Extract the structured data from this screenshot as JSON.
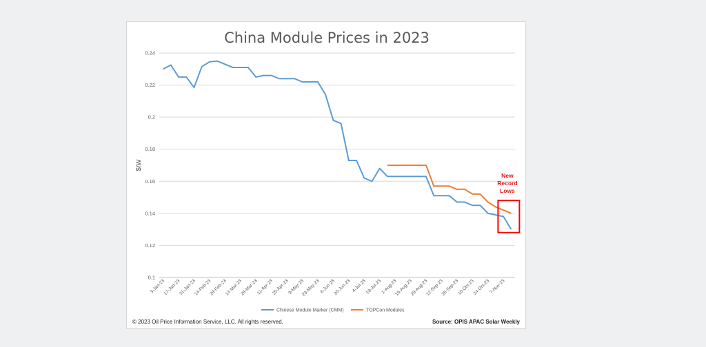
{
  "chart_data": {
    "type": "line",
    "title": "China Module Prices in 2023",
    "ylabel": "$/W",
    "xlabel": "",
    "ylim": [
      0.1,
      0.24
    ],
    "yticks": [
      0.1,
      0.12,
      0.14,
      0.16,
      0.18,
      0.2,
      0.22,
      0.24
    ],
    "grid": true,
    "legend_position": "bottom",
    "x": [
      "3-Jan-23",
      "10-Jan-23",
      "17-Jan-23",
      "24-Jan-23",
      "31-Jan-23",
      "7-Feb-23",
      "14-Feb-23",
      "21-Feb-23",
      "28-Feb-23",
      "7-Mar-23",
      "14-Mar-23",
      "21-Mar-23",
      "28-Mar-23",
      "4-Apr-23",
      "11-Apr-23",
      "18-Apr-23",
      "25-Apr-23",
      "2-May-23",
      "9-May-23",
      "16-May-23",
      "23-May-23",
      "30-May-23",
      "6-Jun-23",
      "13-Jun-23",
      "20-Jun-23",
      "27-Jun-23",
      "4-Jul-23",
      "11-Jul-23",
      "18-Jul-23",
      "25-Jul-23",
      "1-Aug-23",
      "8-Aug-23",
      "15-Aug-23",
      "22-Aug-23",
      "29-Aug-23",
      "5-Sep-23",
      "12-Sep-23",
      "19-Sep-23",
      "26-Sep-23",
      "3-Oct-23",
      "10-Oct-23",
      "17-Oct-23",
      "24-Oct-23",
      "31-Oct-23",
      "7-Nov-23",
      "14-Nov-23"
    ],
    "x_tick_labels": [
      "3-Jan-23",
      "17-Jan-23",
      "31-Jan-23",
      "14-Feb-23",
      "28-Feb-23",
      "14-Mar-23",
      "28-Mar-23",
      "11-Apr-23",
      "25-Apr-23",
      "9-May-23",
      "23-May-23",
      "6-Jun-23",
      "20-Jun-23",
      "4-Jul-23",
      "18-Jul-23",
      "1-Aug-23",
      "15-Aug-23",
      "29-Aug-23",
      "12-Sep-23",
      "26-Sep-23",
      "10-Oct-23",
      "24-Oct-23",
      "7-Nov-23"
    ],
    "series": [
      {
        "name": "Chinese Module Marker (CMM)",
        "color": "#5b9bd5",
        "values": [
          0.23,
          0.2325,
          0.225,
          0.225,
          0.2185,
          0.2315,
          0.2345,
          0.235,
          0.233,
          0.231,
          0.231,
          0.231,
          0.225,
          0.226,
          0.226,
          0.224,
          0.224,
          0.224,
          0.222,
          0.222,
          0.222,
          0.214,
          0.198,
          0.196,
          0.173,
          0.173,
          0.162,
          0.16,
          0.168,
          0.163,
          0.163,
          0.163,
          0.163,
          0.163,
          0.163,
          0.151,
          0.151,
          0.151,
          0.147,
          0.147,
          0.145,
          0.145,
          0.14,
          0.139,
          0.138,
          0.13
        ]
      },
      {
        "name": "TOPCon Modules",
        "color": "#ed7d31",
        "values": [
          null,
          null,
          null,
          null,
          null,
          null,
          null,
          null,
          null,
          null,
          null,
          null,
          null,
          null,
          null,
          null,
          null,
          null,
          null,
          null,
          null,
          null,
          null,
          null,
          null,
          null,
          null,
          null,
          null,
          0.17,
          0.17,
          0.17,
          0.17,
          0.17,
          0.17,
          0.157,
          0.157,
          0.157,
          0.155,
          0.155,
          0.152,
          0.152,
          0.147,
          0.144,
          0.142,
          0.14
        ]
      }
    ],
    "annotation": {
      "lines": [
        "New",
        "Record",
        "Lows"
      ],
      "color": "#e31a1c"
    }
  },
  "footer": {
    "copyright": "© 2023  Oil Price Information Service, LLC. All rights reserved.",
    "source": "Source: OPIS APAC Solar Weekly"
  }
}
